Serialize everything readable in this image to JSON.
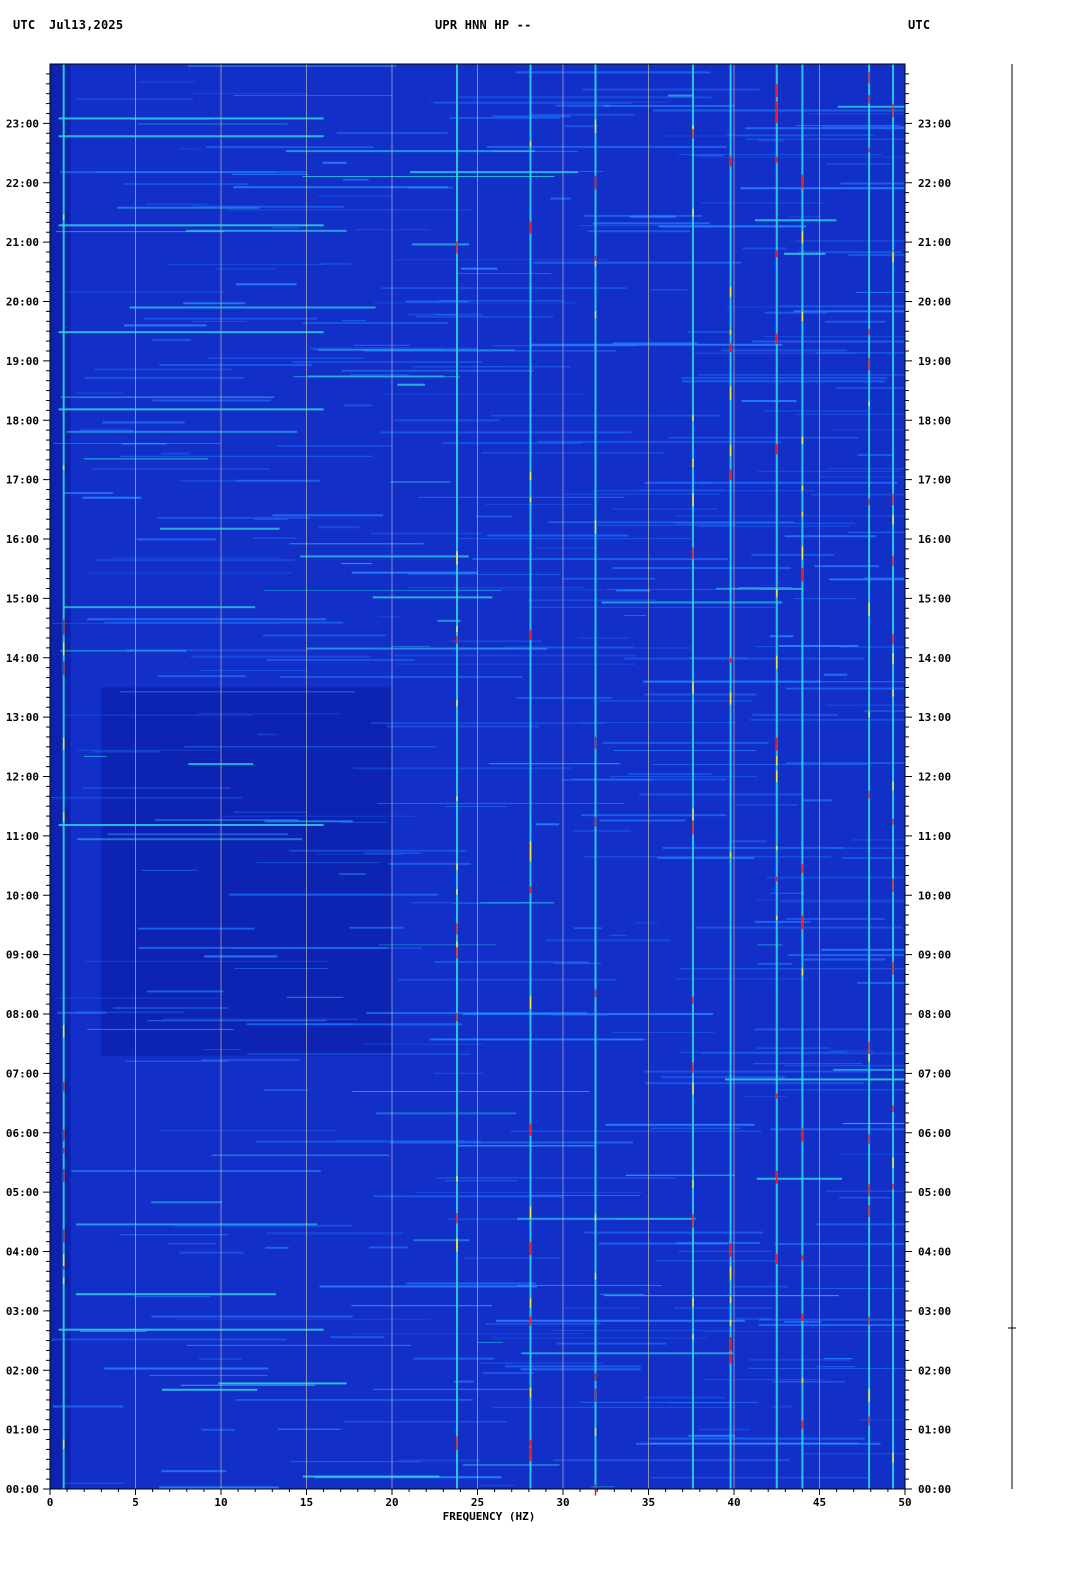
{
  "header": {
    "left_tz": "UTC",
    "date": "Jul13,2025",
    "station": "UPR HNN HP --",
    "right_tz": "UTC"
  },
  "chart_data": {
    "type": "heatmap",
    "title": "UPR HNN HP --",
    "xlabel": "FREQUENCY (HZ)",
    "ylabel": "",
    "xlim": [
      0,
      50
    ],
    "ylim_hours": [
      0,
      24
    ],
    "x_ticks": [
      "0",
      "5",
      "10",
      "15",
      "20",
      "25",
      "30",
      "35",
      "40",
      "45",
      "50"
    ],
    "y_ticks": [
      "00:00",
      "01:00",
      "02:00",
      "03:00",
      "04:00",
      "05:00",
      "06:00",
      "07:00",
      "08:00",
      "09:00",
      "10:00",
      "11:00",
      "12:00",
      "13:00",
      "14:00",
      "15:00",
      "16:00",
      "17:00",
      "18:00",
      "19:00",
      "20:00",
      "21:00",
      "22:00",
      "23:00"
    ],
    "grid": true,
    "colors": {
      "background": "#1230c8",
      "low": "#0a1a9e",
      "mid": "#1e6bff",
      "cyan": "#2fe0e8",
      "yellow": "#e8e840",
      "red": "#e02020",
      "grid": "#b8b8b8"
    },
    "persistent_lines_hz": [
      0.8,
      23.8,
      28.1,
      31.9,
      37.6,
      39.8,
      42.5,
      44.0,
      47.9,
      49.3
    ]
  }
}
